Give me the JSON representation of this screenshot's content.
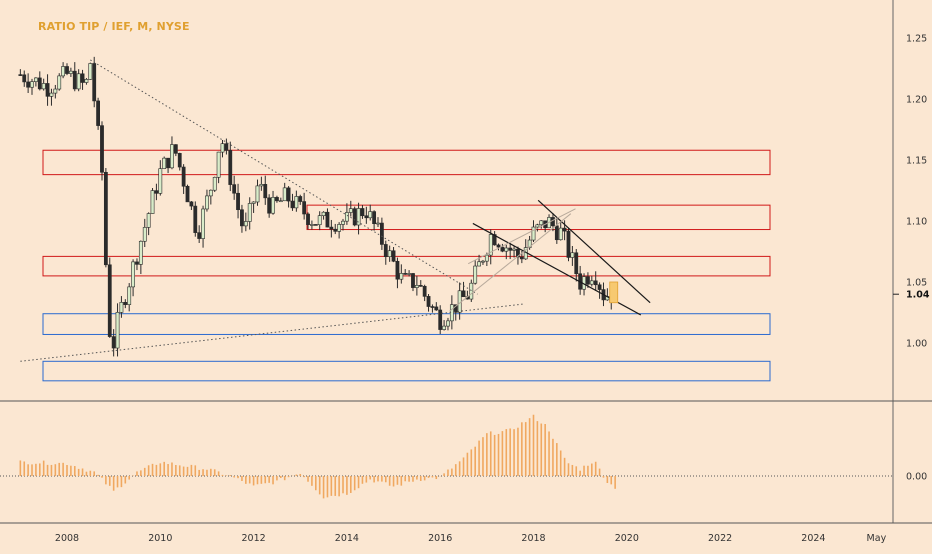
{
  "chart_title": "RATIO TIP / IEF, M, NYSE",
  "colors": {
    "background": "#fbe7d2",
    "up_candle": "#d9ecc9",
    "down_candle": "#2b2b2b",
    "wick": "#2b2b2b",
    "resistance_zone": "#d01818",
    "support_zone": "#2a6ad0",
    "histogram": "#f0a860",
    "title": "#e0a030",
    "axis_text": "#333333",
    "current_price_box": "#f7c970"
  },
  "chart_data": [
    {
      "type": "candlestick",
      "title": "RATIO TIP / IEF, M, NYSE",
      "y_ticks": [
        "1.00",
        "1.05",
        "1.10",
        "1.15",
        "1.20",
        "1.25"
      ],
      "ylim": [
        0.96,
        1.285
      ],
      "current_value": "1.04",
      "x_ticks": [
        "2008",
        "2010",
        "2012",
        "2014",
        "2016",
        "2018",
        "2020",
        "2022",
        "2024",
        "May"
      ],
      "price_path": [
        [
          2007.0,
          1.22
        ],
        [
          2007.6,
          1.21
        ],
        [
          2008.0,
          1.22
        ],
        [
          2008.4,
          1.21
        ],
        [
          2008.5,
          1.23
        ],
        [
          2008.75,
          1.14
        ],
        [
          2008.85,
          1.05
        ],
        [
          2008.95,
          0.99
        ],
        [
          2009.1,
          1.02
        ],
        [
          2009.4,
          1.06
        ],
        [
          2009.7,
          1.1
        ],
        [
          2010.0,
          1.14
        ],
        [
          2010.3,
          1.16
        ],
        [
          2010.6,
          1.12
        ],
        [
          2010.8,
          1.09
        ],
        [
          2011.1,
          1.13
        ],
        [
          2011.3,
          1.17
        ],
        [
          2011.6,
          1.12
        ],
        [
          2011.8,
          1.09
        ],
        [
          2012.1,
          1.13
        ],
        [
          2012.4,
          1.11
        ],
        [
          2012.7,
          1.12
        ],
        [
          2013.0,
          1.11
        ],
        [
          2013.3,
          1.1
        ],
        [
          2013.6,
          1.1
        ],
        [
          2014.0,
          1.1
        ],
        [
          2014.4,
          1.11
        ],
        [
          2014.8,
          1.08
        ],
        [
          2015.2,
          1.05
        ],
        [
          2015.5,
          1.05
        ],
        [
          2015.8,
          1.03
        ],
        [
          2016.0,
          1.02
        ],
        [
          2016.3,
          1.03
        ],
        [
          2016.6,
          1.04
        ],
        [
          2016.9,
          1.07
        ],
        [
          2017.1,
          1.09
        ],
        [
          2017.4,
          1.08
        ],
        [
          2017.7,
          1.07
        ],
        [
          2018.0,
          1.09
        ],
        [
          2018.3,
          1.1
        ],
        [
          2018.6,
          1.09
        ],
        [
          2018.8,
          1.07
        ],
        [
          2019.0,
          1.05
        ],
        [
          2019.3,
          1.06
        ],
        [
          2019.5,
          1.04
        ],
        [
          2019.7,
          1.04
        ]
      ],
      "resistance_zones": [
        [
          1.138,
          1.158
        ],
        [
          1.093,
          1.113
        ],
        [
          1.055,
          1.071
        ]
      ],
      "support_zones": [
        [
          1.007,
          1.024
        ],
        [
          0.969,
          0.985
        ]
      ],
      "trendlines": [
        {
          "style": "dotted",
          "from": [
            2008.5,
            1.232
          ],
          "to": [
            2016.8,
            1.04
          ]
        },
        {
          "style": "dotted",
          "from": [
            2007.0,
            0.985
          ],
          "to": [
            2017.8,
            1.032
          ]
        },
        {
          "style": "solid",
          "from": [
            2016.7,
            1.098
          ],
          "to": [
            2020.3,
            1.023
          ]
        },
        {
          "style": "solid",
          "from": [
            2018.1,
            1.117
          ],
          "to": [
            2020.5,
            1.033
          ]
        },
        {
          "style": "light",
          "from": [
            2016.2,
            1.026
          ],
          "to": [
            2018.8,
            1.106
          ]
        },
        {
          "style": "light",
          "from": [
            2016.6,
            1.065
          ],
          "to": [
            2018.9,
            1.11
          ]
        }
      ]
    },
    {
      "type": "bar",
      "title": "",
      "y_ticks": [
        "0.00"
      ],
      "ylim": [
        -1,
        1
      ],
      "oscillator": [
        [
          2007.0,
          0.2
        ],
        [
          2008.0,
          0.18
        ],
        [
          2008.6,
          0.05
        ],
        [
          2009.0,
          -0.22
        ],
        [
          2009.5,
          0.05
        ],
        [
          2010.0,
          0.2
        ],
        [
          2011.0,
          0.1
        ],
        [
          2011.5,
          0.0
        ],
        [
          2012.0,
          -0.15
        ],
        [
          2012.5,
          -0.08
        ],
        [
          2013.0,
          0.05
        ],
        [
          2013.5,
          -0.3
        ],
        [
          2014.0,
          -0.25
        ],
        [
          2014.5,
          -0.05
        ],
        [
          2015.0,
          -0.15
        ],
        [
          2015.5,
          -0.05
        ],
        [
          2016.0,
          -0.02
        ],
        [
          2016.5,
          0.25
        ],
        [
          2017.0,
          0.6
        ],
        [
          2017.5,
          0.65
        ],
        [
          2018.0,
          0.85
        ],
        [
          2018.3,
          0.7
        ],
        [
          2018.7,
          0.2
        ],
        [
          2019.0,
          0.1
        ],
        [
          2019.3,
          0.22
        ],
        [
          2019.6,
          -0.1
        ],
        [
          2019.8,
          -0.18
        ]
      ]
    }
  ]
}
